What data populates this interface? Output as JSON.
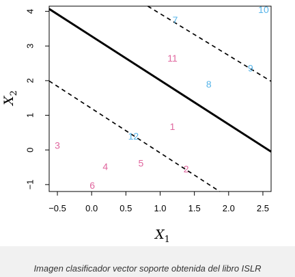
{
  "chart_data": {
    "type": "scatter",
    "title": "",
    "xlabel": {
      "symbol": "X",
      "subscript": "1"
    },
    "ylabel": {
      "symbol": "X",
      "subscript": "2"
    },
    "xlim": [
      -0.62,
      2.62
    ],
    "ylim": [
      -1.2,
      4.15
    ],
    "x_ticks": [
      -0.5,
      0.0,
      0.5,
      1.0,
      1.5,
      2.0,
      2.5
    ],
    "x_tick_labels": [
      "−0.5",
      "0.0",
      "0.5",
      "1.0",
      "1.5",
      "2.0",
      "2.5"
    ],
    "y_ticks": [
      -1,
      0,
      1,
      2,
      3,
      4
    ],
    "y_tick_labels": [
      "−1",
      "0",
      "1",
      "2",
      "3",
      "4"
    ],
    "grid": false,
    "colors": {
      "class_a": "#e0669e",
      "class_b": "#56b4e9"
    },
    "series": [
      {
        "class": "class_a",
        "points": [
          {
            "label": "1",
            "x": 1.18,
            "y": 0.68
          },
          {
            "label": "2",
            "x": 1.38,
            "y": -0.55
          },
          {
            "label": "3",
            "x": -0.5,
            "y": 0.13
          },
          {
            "label": "4",
            "x": 0.2,
            "y": -0.48
          },
          {
            "label": "5",
            "x": 0.72,
            "y": -0.38
          },
          {
            "label": "6",
            "x": 0.01,
            "y": -1.02
          },
          {
            "label": "11",
            "x": 1.18,
            "y": 2.65
          }
        ]
      },
      {
        "class": "class_b",
        "points": [
          {
            "label": "7",
            "x": 1.22,
            "y": 3.76
          },
          {
            "label": "8",
            "x": 1.71,
            "y": 1.9
          },
          {
            "label": "9",
            "x": 2.32,
            "y": 2.36
          },
          {
            "label": "10",
            "x": 2.51,
            "y": 4.05
          },
          {
            "label": "12",
            "x": 0.61,
            "y": 0.4
          }
        ]
      }
    ],
    "lines": [
      {
        "style": "solid",
        "points": [
          [
            -0.62,
            4.07
          ],
          [
            2.62,
            -0.05
          ]
        ]
      },
      {
        "style": "dashed",
        "points": [
          [
            -0.62,
            1.99
          ],
          [
            1.87,
            -1.2
          ]
        ]
      },
      {
        "style": "dashed",
        "points": [
          [
            0.82,
            4.15
          ],
          [
            2.62,
            1.98
          ]
        ]
      }
    ]
  },
  "caption": "Imagen clasificador vector soporte obtenida del libro ISLR"
}
